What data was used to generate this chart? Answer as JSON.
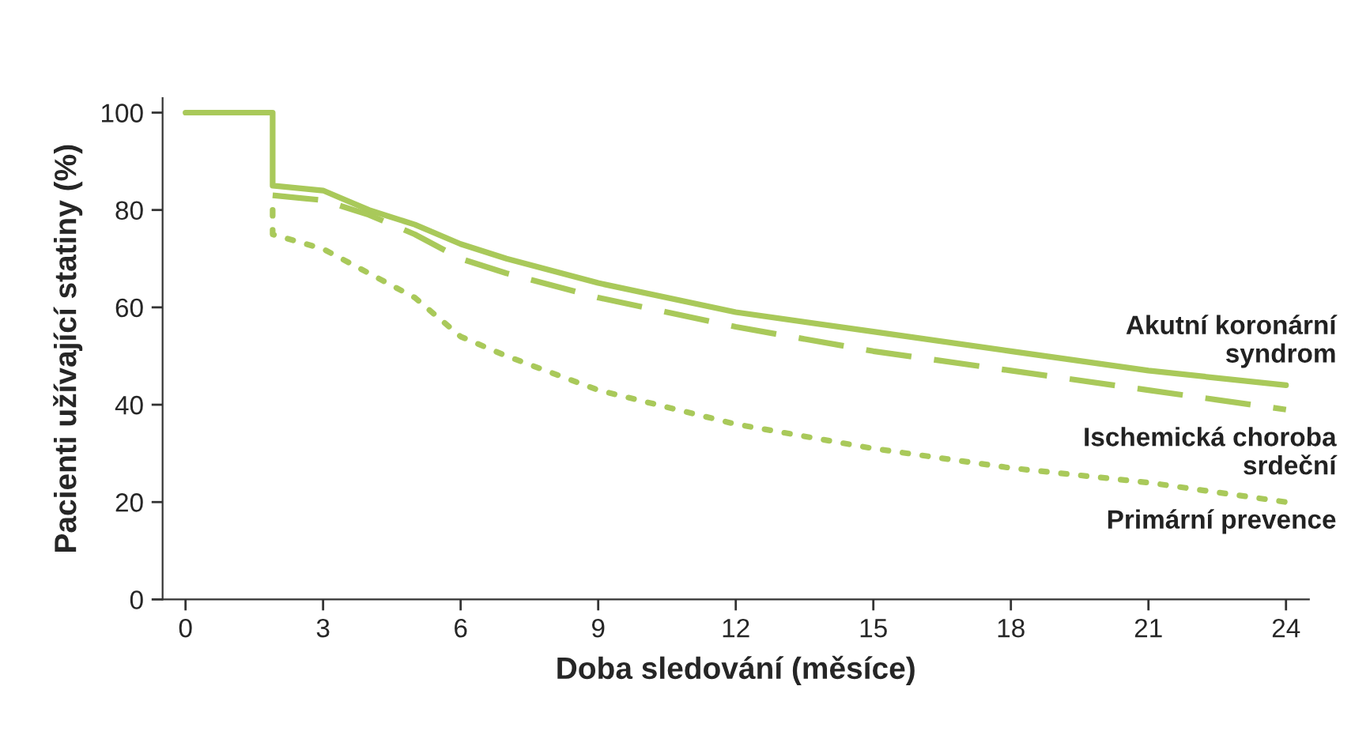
{
  "chart_data": {
    "type": "line",
    "xlabel": "Doba sledování (měsíce)",
    "ylabel": "Pacienti užívající statiny (%)",
    "xlim": [
      -0.5,
      24.5
    ],
    "ylim": [
      0,
      103
    ],
    "xticks": [
      0,
      3,
      6,
      9,
      12,
      15,
      18,
      21,
      24
    ],
    "yticks": [
      0,
      20,
      40,
      60,
      80,
      100
    ],
    "grid": false,
    "legend": false,
    "marker": "none",
    "series": [
      {
        "name": "Akutní koronární\nsyndrom",
        "color": "#a9c95a",
        "line_style": "solid",
        "x": [
          0,
          1.9,
          1.9,
          3,
          4,
          5,
          6,
          7,
          9,
          12,
          15,
          18,
          21,
          24
        ],
        "values": [
          100,
          100,
          85,
          84,
          80,
          77,
          73,
          70,
          65,
          59,
          55,
          51,
          47,
          44
        ]
      },
      {
        "name": "Ischemická choroba\nsrdeční",
        "color": "#a9c95a",
        "line_style": "dashed",
        "x": [
          1.9,
          3,
          4,
          5,
          6,
          7,
          9,
          12,
          15,
          18,
          21,
          24
        ],
        "values": [
          83,
          82,
          79,
          75,
          70,
          67,
          62,
          56,
          51,
          47,
          43,
          39
        ]
      },
      {
        "name": "Primární prevence",
        "color": "#a9c95a",
        "line_style": "dotted",
        "x": [
          1.9,
          1.9,
          3,
          4,
          5,
          6,
          7,
          9,
          12,
          15,
          18,
          21,
          24
        ],
        "values": [
          80,
          75,
          72,
          67,
          62,
          54,
          50,
          43,
          36,
          31,
          27,
          24,
          20
        ]
      }
    ]
  }
}
